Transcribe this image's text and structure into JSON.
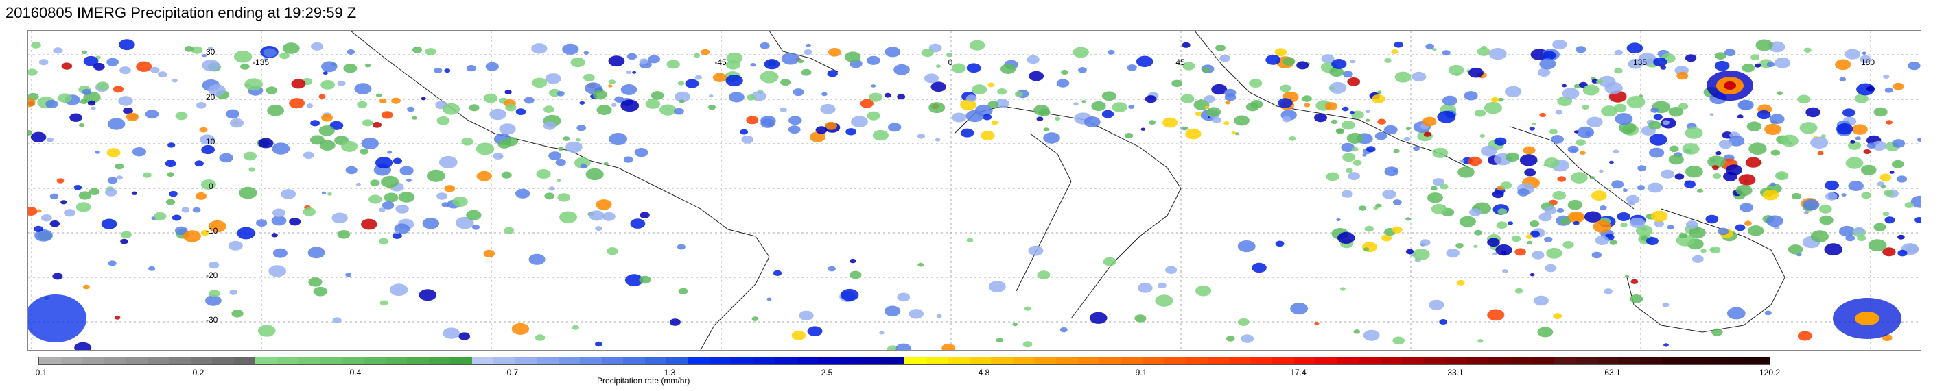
{
  "title": "20160805 IMERG Precipitation ending at 19:29:59 Z",
  "map": {
    "lat_labels": [
      "30",
      "20",
      "10",
      "0",
      "-10",
      "-20",
      "-30"
    ],
    "lon_labels": [
      "-135",
      "-45",
      "0",
      "45",
      "135",
      "180"
    ]
  },
  "colorbar": {
    "tick_labels": [
      "0.1",
      "0.2",
      "0.4",
      "0.7",
      "1.3",
      "2.5",
      "4.8",
      "9.1",
      "17.4",
      "33.1",
      "63.1",
      "120.2"
    ],
    "label": "Precipitation rate (mm/hr)",
    "colors": [
      "#b0b0b0",
      "#a8a8a8",
      "#a0a0a0",
      "#989898",
      "#909090",
      "#888888",
      "#808080",
      "#787878",
      "#707070",
      "#686868",
      "#86d886",
      "#7ed27e",
      "#76cc76",
      "#6ec66e",
      "#66c066",
      "#5eba5e",
      "#56b456",
      "#4eae4e",
      "#46a846",
      "#3ea23e",
      "#b8c8f0",
      "#a8bcf0",
      "#98b0f0",
      "#88a4ee",
      "#7898ec",
      "#688cea",
      "#5880e8",
      "#4874e6",
      "#3868e4",
      "#285ce2",
      "#0030f0",
      "#0028e8",
      "#0020e0",
      "#0018d8",
      "#0010d0",
      "#0008c8",
      "#0000c0",
      "#0000b8",
      "#0000b0",
      "#0000a8",
      "#ffff00",
      "#fff000",
      "#ffe000",
      "#ffd000",
      "#ffc000",
      "#ffb000",
      "#ffa000",
      "#ff9400",
      "#ff8800",
      "#ff7c00",
      "#ff7000",
      "#ff6400",
      "#ff5800",
      "#ff4c00",
      "#ff4000",
      "#ff3400",
      "#ff2800",
      "#f81c00",
      "#f01000",
      "#e80800",
      "#d80000",
      "#c80000",
      "#b80000",
      "#a80000",
      "#980000",
      "#880000",
      "#780000",
      "#700000",
      "#680000",
      "#600000",
      "#581010",
      "#501010",
      "#480c0c",
      "#400808",
      "#380404",
      "#300000",
      "#2c0000",
      "#280000",
      "#240000",
      "#200000"
    ]
  }
}
